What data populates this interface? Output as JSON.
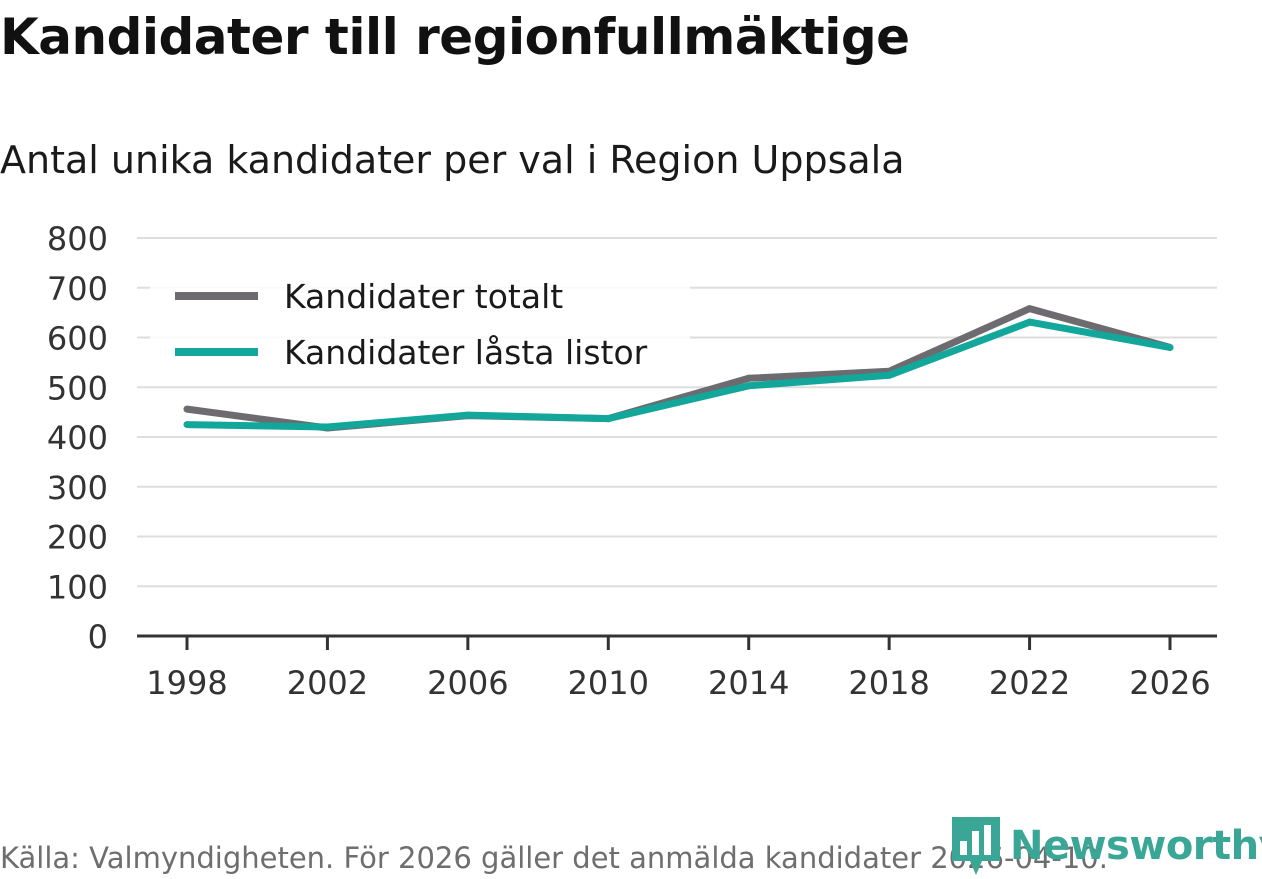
{
  "title": "Kandidater till regionfullmäktige",
  "subtitle": "Antal unika kandidater per val i Region Uppsala",
  "footer": {
    "source": "Källa: Valmyndigheten. För 2026 gäller det anmälda kandidater 2026-04-10.",
    "brand": "Newsworthy",
    "brand_icon": "bar-chart-icon"
  },
  "colors": {
    "total": "#6d6b70",
    "locked": "#12a79a",
    "grid": "#dddddd",
    "axis": "#333333",
    "brand": "#3aa696"
  },
  "chart_data": {
    "type": "line",
    "title": "Kandidater till regionfullmäktige",
    "subtitle": "Antal unika kandidater per val i Region Uppsala",
    "xlabel": "",
    "ylabel": "",
    "x": [
      1998,
      2002,
      2006,
      2010,
      2014,
      2018,
      2022,
      2026
    ],
    "x_tick_labels": [
      "1998",
      "2002",
      "2006",
      "2010",
      "2014",
      "2018",
      "2022",
      "2026"
    ],
    "y_ticks": [
      0,
      100,
      200,
      300,
      400,
      500,
      600,
      700,
      800
    ],
    "y_tick_labels": [
      "0",
      "100",
      "200",
      "300",
      "400",
      "500",
      "600",
      "700",
      "800"
    ],
    "ylim": [
      0,
      800
    ],
    "grid": true,
    "legend_position": "top-left",
    "series": [
      {
        "name": "Kandidater totalt",
        "color_key": "total",
        "values": [
          456,
          418,
          443,
          437,
          518,
          532,
          658,
          580
        ]
      },
      {
        "name": "Kandidater låsta listor",
        "color_key": "locked",
        "values": [
          425,
          420,
          444,
          437,
          503,
          524,
          631,
          580
        ]
      }
    ]
  }
}
